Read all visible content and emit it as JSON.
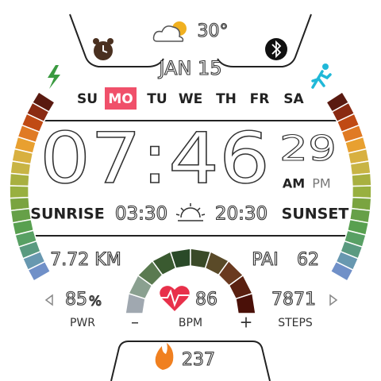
{
  "weather": {
    "temp": "30°"
  },
  "date": "JAN 15",
  "days": [
    {
      "label": "SU",
      "active": false
    },
    {
      "label": "MO",
      "active": true
    },
    {
      "label": "TU",
      "active": false
    },
    {
      "label": "WE",
      "active": false
    },
    {
      "label": "TH",
      "active": false
    },
    {
      "label": "FR",
      "active": false
    },
    {
      "label": "SA",
      "active": false
    }
  ],
  "time": {
    "hm": "07:46",
    "seconds": "29",
    "am": "AM",
    "pm": "PM"
  },
  "sun": {
    "sunrise_label": "SUNRISE",
    "sunrise": "03:30",
    "sunset": "20:30",
    "sunset_label": "SUNSET"
  },
  "stats": {
    "distance": "7.72 KM",
    "pai_label": "PAI",
    "pai": "62",
    "battery": "85",
    "battery_unit": "%",
    "battery_label": "PWR",
    "heart": "86",
    "heart_label": "BPM",
    "minus": "–",
    "plus": "+",
    "steps": "7871",
    "steps_label": "STEPS",
    "calories": "237"
  }
}
